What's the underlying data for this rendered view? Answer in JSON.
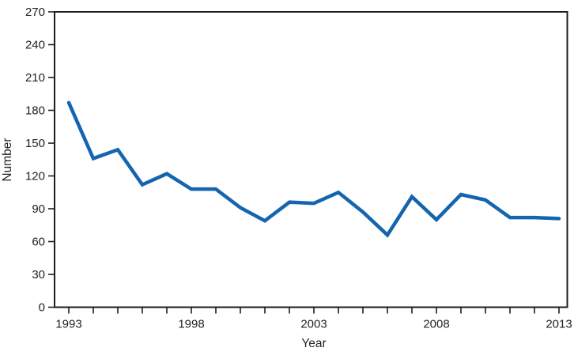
{
  "figure": {
    "background": "#ffffff"
  },
  "chart_data": {
    "type": "line",
    "title": "",
    "xlabel": "Year",
    "ylabel": "Number",
    "x": [
      1993,
      1994,
      1995,
      1996,
      1997,
      1998,
      1999,
      2000,
      2001,
      2002,
      2003,
      2004,
      2005,
      2006,
      2007,
      2008,
      2009,
      2010,
      2011,
      2012,
      2013
    ],
    "series": [
      {
        "name": "Number",
        "values": [
          187,
          136,
          144,
          112,
          122,
          108,
          108,
          91,
          79,
          96,
          95,
          105,
          87,
          66,
          101,
          80,
          103,
          98,
          82,
          82,
          81
        ]
      }
    ],
    "xlim": [
      1992.42,
      2013.35
    ],
    "ylim": [
      0,
      270
    ],
    "ytick_step": 30,
    "ytick_labels": [
      "0",
      "30",
      "60",
      "90",
      "120",
      "150",
      "180",
      "210",
      "240",
      "270"
    ],
    "xticks_labeled": [
      1993,
      1998,
      2003,
      2008,
      2013
    ],
    "xticks_minor_every_year": true,
    "grid": false,
    "legend_position": "none",
    "frame": "box",
    "line_color": "#1465AF",
    "axis_color": "#1f1c1d"
  }
}
